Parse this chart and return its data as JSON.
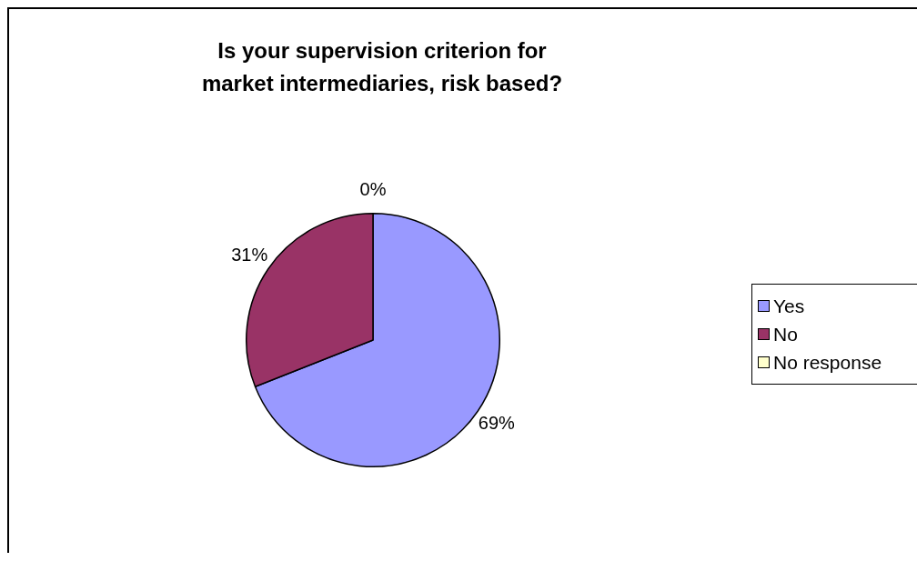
{
  "chart_data": {
    "type": "pie",
    "title": "Is your supervision criterion for market intermediaries, risk based?",
    "categories": [
      "Yes",
      "No",
      "No response"
    ],
    "values": [
      69,
      31,
      0
    ],
    "colors": [
      "#9999ff",
      "#993366",
      "#ffffcc"
    ],
    "value_labels": [
      "69%",
      "31%",
      "0%"
    ],
    "legend": "right"
  }
}
